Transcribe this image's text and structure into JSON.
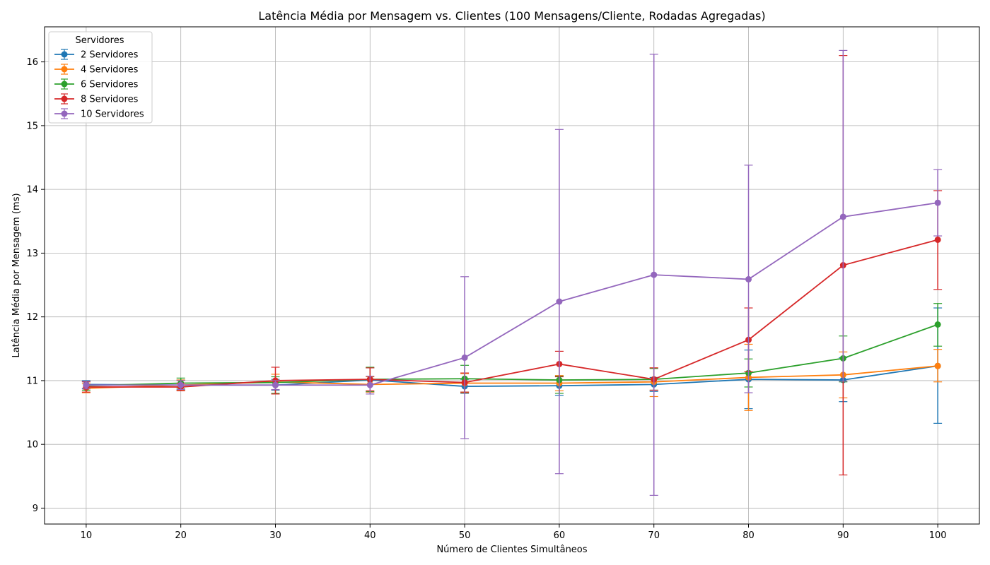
{
  "chart_data": {
    "type": "line",
    "title": "Latência Média por Mensagem vs. Clientes (100 Mensagens/Cliente, Rodadas Agregadas)",
    "xlabel": "Número de Clientes Simultâneos",
    "ylabel": "Latência Média por Mensagem (ms)",
    "x": [
      10,
      20,
      30,
      40,
      50,
      60,
      70,
      80,
      90,
      100
    ],
    "xticks": [
      "10",
      "20",
      "30",
      "40",
      "50",
      "60",
      "70",
      "80",
      "90",
      "100"
    ],
    "yticks": [
      "9",
      "10",
      "11",
      "12",
      "13",
      "14",
      "15",
      "16"
    ],
    "xlim": [
      5.6,
      104.4
    ],
    "ylim": [
      8.75,
      16.55
    ],
    "grid": true,
    "error_bars": true,
    "legend": {
      "title": "Servidores",
      "position": "top-left"
    },
    "series": [
      {
        "name": "2 Servidores",
        "color": "#1f77b4",
        "values": [
          10.94,
          10.93,
          10.93,
          11.01,
          10.91,
          10.92,
          10.94,
          11.02,
          11.01,
          11.23
        ],
        "lower": [
          10.88,
          10.85,
          10.85,
          10.82,
          10.8,
          10.77,
          10.83,
          10.56,
          10.67,
          10.33
        ],
        "upper": [
          11.0,
          11.01,
          11.02,
          11.2,
          11.02,
          11.07,
          11.05,
          11.48,
          11.36,
          12.14
        ]
      },
      {
        "name": "4 Servidores",
        "color": "#ff7f0e",
        "values": [
          10.88,
          10.93,
          10.98,
          10.94,
          10.96,
          10.96,
          10.98,
          11.05,
          11.09,
          11.23
        ],
        "lower": [
          10.81,
          10.85,
          10.86,
          10.82,
          10.81,
          10.84,
          10.75,
          10.53,
          10.73,
          10.98
        ],
        "upper": [
          10.95,
          11.01,
          11.1,
          11.06,
          11.11,
          11.08,
          11.2,
          11.57,
          11.45,
          11.49
        ]
      },
      {
        "name": "6 Servidores",
        "color": "#2ca02c",
        "values": [
          10.92,
          10.96,
          10.97,
          11.02,
          11.03,
          11.01,
          11.02,
          11.12,
          11.35,
          11.88
        ],
        "lower": [
          10.85,
          10.88,
          10.8,
          10.83,
          10.82,
          10.8,
          10.85,
          10.9,
          10.98,
          11.54
        ],
        "upper": [
          10.99,
          11.04,
          11.06,
          11.21,
          11.24,
          11.07,
          11.19,
          11.34,
          11.7,
          12.21
        ]
      },
      {
        "name": "8 Servidores",
        "color": "#d62728",
        "values": [
          10.9,
          10.9,
          11.0,
          11.02,
          10.97,
          11.26,
          11.02,
          11.64,
          12.81,
          13.21
        ],
        "lower": [
          10.82,
          10.84,
          10.79,
          10.84,
          10.82,
          11.06,
          10.85,
          11.14,
          9.52,
          12.43
        ],
        "upper": [
          10.98,
          10.96,
          11.21,
          11.2,
          11.12,
          11.46,
          11.2,
          12.14,
          16.1,
          13.98
        ]
      },
      {
        "name": "10 Servidores",
        "color": "#9467bd",
        "values": [
          10.93,
          10.93,
          10.93,
          10.93,
          11.36,
          12.24,
          12.66,
          12.59,
          13.57,
          13.79
        ],
        "lower": [
          10.87,
          10.86,
          10.86,
          10.79,
          10.09,
          9.54,
          9.2,
          10.81,
          10.99,
          13.27
        ],
        "upper": [
          10.99,
          11.0,
          11.0,
          11.07,
          12.63,
          14.94,
          16.12,
          14.38,
          16.18,
          14.31
        ]
      }
    ]
  }
}
